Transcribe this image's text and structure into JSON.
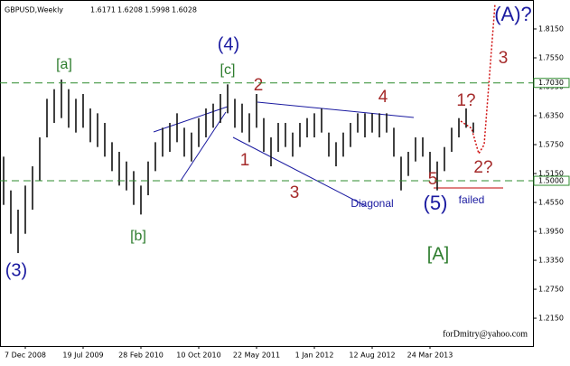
{
  "chart_data": {
    "type": "ohlc",
    "title": "GBPUSD,Weekly",
    "quote": [
      1.6171,
      1.6208,
      1.5998,
      1.6028
    ],
    "color": "#111111",
    "categories": [
      null,
      null,
      null,
      "7 Dec 2008",
      null,
      null,
      null,
      null,
      null,
      null,
      null,
      "19 Jul 2009",
      null,
      null,
      null,
      null,
      null,
      null,
      null,
      "28 Feb 2010",
      null,
      null,
      null,
      null,
      null,
      null,
      null,
      "10 Oct 2010",
      null,
      null,
      null,
      null,
      null,
      null,
      null,
      "22 May 2011",
      null,
      null,
      null,
      null,
      null,
      null,
      null,
      "1 Jan 2012",
      null,
      null,
      null,
      null,
      null,
      null,
      null,
      "12 Aug 2012",
      null,
      null,
      null,
      null,
      null,
      null,
      null,
      "24 Mar 2013",
      null,
      null,
      null,
      null,
      null,
      null
    ],
    "high": [
      1.55,
      1.48,
      1.44,
      1.49,
      1.53,
      1.59,
      1.67,
      1.69,
      1.71,
      1.69,
      1.67,
      1.68,
      1.65,
      1.64,
      1.62,
      1.58,
      1.56,
      1.54,
      1.52,
      1.49,
      1.54,
      1.58,
      1.61,
      1.62,
      1.64,
      1.61,
      1.6,
      1.63,
      1.65,
      1.66,
      1.68,
      1.7,
      1.67,
      1.66,
      1.64,
      1.68,
      1.63,
      1.59,
      1.62,
      1.62,
      1.6,
      1.62,
      1.63,
      1.64,
      1.65,
      1.6,
      1.58,
      1.6,
      1.62,
      1.64,
      1.64,
      1.64,
      1.64,
      1.64,
      1.61,
      1.55,
      1.56,
      1.59,
      1.59,
      1.56,
      1.54,
      1.57,
      1.61,
      1.63,
      1.65,
      1.6208
    ],
    "low": [
      1.45,
      1.39,
      1.35,
      1.39,
      1.44,
      1.5,
      1.59,
      1.62,
      1.63,
      1.61,
      1.6,
      1.61,
      1.58,
      1.57,
      1.55,
      1.52,
      1.49,
      1.48,
      1.45,
      1.43,
      1.47,
      1.52,
      1.55,
      1.56,
      1.58,
      1.55,
      1.54,
      1.57,
      1.59,
      1.61,
      1.62,
      1.64,
      1.61,
      1.6,
      1.58,
      1.61,
      1.56,
      1.53,
      1.56,
      1.57,
      1.55,
      1.57,
      1.59,
      1.59,
      1.6,
      1.55,
      1.53,
      1.55,
      1.57,
      1.6,
      1.59,
      1.6,
      1.59,
      1.6,
      1.55,
      1.48,
      1.51,
      1.54,
      1.55,
      1.51,
      1.48,
      1.52,
      1.56,
      1.59,
      1.61,
      1.5998
    ],
    "ylim": [
      1.157,
      1.875
    ],
    "yticks": [
      {
        "value": 1.815,
        "label": "1.8150"
      },
      {
        "value": 1.755,
        "label": "1.7550"
      },
      {
        "value": 1.695,
        "label": "1.6950"
      },
      {
        "value": 1.635,
        "label": "1.6350"
      },
      {
        "value": 1.575,
        "label": "1.5750"
      },
      {
        "value": 1.515,
        "label": "1.5150"
      },
      {
        "value": 1.455,
        "label": "1.4550"
      },
      {
        "value": 1.395,
        "label": "1.3950"
      },
      {
        "value": 1.335,
        "label": "1.3350"
      },
      {
        "value": 1.275,
        "label": "1.2750"
      },
      {
        "value": 1.215,
        "label": "1.2150"
      }
    ],
    "levels": [
      {
        "value": 1.703,
        "label": "1.7030"
      },
      {
        "value": 1.5,
        "label": "1.5000"
      }
    ],
    "level_color": "#2e8b2e",
    "annotations": [
      "(A)?",
      "(4)",
      "[a]",
      "[c]",
      "2",
      "3",
      "4",
      "1?",
      "1",
      "2?",
      "3",
      "5",
      "(5)",
      "[A]",
      "[b]",
      "(3)",
      "Diagonal",
      "failed"
    ],
    "credit": "forDmitry@yahoo.com"
  }
}
